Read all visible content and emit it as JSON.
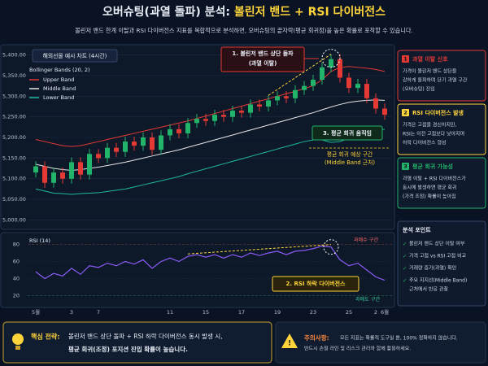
{
  "header": {
    "title_prefix": "오버슈팅(과열 돌파) 분석: ",
    "title_highlight": "볼린저 밴드 + RSI 다이버전스",
    "subtitle": "볼린저 밴드 한계 이탈과 RSI 다이버전스 지표를 복합적으로 분석하면, 오버슈팅의 끝자락(평균 회귀점)을 높은 확률로 포착할 수 있습니다."
  },
  "chart_data": [
    {
      "type": "candlestick",
      "title": "해외선물 예시 차트 (4시간)",
      "legend_title": "Bollinger Bands (20, 2)",
      "open": [
        5115,
        5130,
        5090,
        5115,
        5100,
        5140,
        5110,
        5160,
        5150,
        5175,
        5165,
        5190,
        5180,
        5200,
        5170,
        5205,
        5220,
        5210,
        5235,
        5245,
        5240,
        5255,
        5250,
        5265,
        5260,
        5280,
        5275,
        5290,
        5300,
        5295,
        5315,
        5325,
        5340,
        5370,
        5390,
        5345,
        5320,
        5330,
        5295,
        5270
      ],
      "high": [
        5142,
        5142,
        5127,
        5127,
        5152,
        5152,
        5172,
        5172,
        5187,
        5187,
        5202,
        5202,
        5212,
        5212,
        5217,
        5232,
        5232,
        5247,
        5257,
        5257,
        5267,
        5267,
        5277,
        5277,
        5292,
        5292,
        5302,
        5312,
        5312,
        5327,
        5337,
        5352,
        5382,
        5402,
        5402,
        5357,
        5342,
        5342,
        5307,
        5282
      ],
      "low": [
        5103,
        5078,
        5078,
        5088,
        5088,
        5098,
        5098,
        5138,
        5138,
        5153,
        5153,
        5168,
        5168,
        5158,
        5158,
        5193,
        5198,
        5198,
        5223,
        5228,
        5228,
        5238,
        5238,
        5248,
        5248,
        5263,
        5263,
        5278,
        5283,
        5283,
        5303,
        5313,
        5328,
        5358,
        5333,
        5308,
        5308,
        5283,
        5258,
        5243
      ],
      "close": [
        5130,
        5090,
        5115,
        5100,
        5140,
        5110,
        5160,
        5150,
        5175,
        5165,
        5190,
        5180,
        5200,
        5170,
        5205,
        5220,
        5210,
        5235,
        5245,
        5240,
        5255,
        5250,
        5265,
        5260,
        5280,
        5275,
        5290,
        5300,
        5295,
        5315,
        5325,
        5340,
        5370,
        5390,
        5345,
        5320,
        5330,
        5295,
        5270,
        5255
      ],
      "up_color": "#22b46a",
      "down_color": "#e53935",
      "series": [
        {
          "name": "Upper Band",
          "color": "#e53935",
          "values": [
            5195,
            5190,
            5185,
            5180,
            5178,
            5180,
            5185,
            5190,
            5195,
            5200,
            5205,
            5210,
            5215,
            5220,
            5225,
            5230,
            5235,
            5240,
            5246,
            5252,
            5258,
            5264,
            5270,
            5276,
            5282,
            5288,
            5294,
            5300,
            5306,
            5312,
            5318,
            5326,
            5340,
            5360,
            5370,
            5372,
            5370,
            5368,
            5365,
            5360
          ]
        },
        {
          "name": "Middle Band",
          "color": "#e6e6e6",
          "values": [
            5135,
            5130,
            5125,
            5122,
            5120,
            5122,
            5125,
            5128,
            5132,
            5136,
            5140,
            5145,
            5150,
            5155,
            5160,
            5165,
            5170,
            5176,
            5182,
            5188,
            5194,
            5200,
            5206,
            5212,
            5218,
            5224,
            5230,
            5236,
            5242,
            5248,
            5254,
            5260,
            5267,
            5274,
            5280,
            5285,
            5288,
            5290,
            5291,
            5290
          ]
        },
        {
          "name": "Lower Band",
          "color": "#1fb8a0",
          "values": [
            5075,
            5070,
            5065,
            5064,
            5062,
            5064,
            5065,
            5066,
            5069,
            5072,
            5075,
            5080,
            5085,
            5090,
            5095,
            5100,
            5105,
            5112,
            5118,
            5124,
            5130,
            5136,
            5142,
            5148,
            5154,
            5160,
            5166,
            5172,
            5178,
            5184,
            5190,
            5194,
            5194,
            5188,
            5190,
            5198,
            5206,
            5212,
            5217,
            5220
          ]
        }
      ],
      "ylim": [
        4985,
        5415
      ],
      "yticks": [
        {
          "value": 5400,
          "label": "5,400.00"
        },
        {
          "value": 5350,
          "label": "5,350.00"
        },
        {
          "value": 5300,
          "label": "5,300.00"
        },
        {
          "value": 5250,
          "label": "5,250.00"
        },
        {
          "value": 5200,
          "label": "5,200.00"
        },
        {
          "value": 5150,
          "label": "5,150.00"
        },
        {
          "value": 5100,
          "label": "5,100.00"
        },
        {
          "value": 5050,
          "label": "5,050.00"
        },
        {
          "value": 5000,
          "label": "5,000.00"
        }
      ],
      "grid": true,
      "annotations": [
        {
          "lines": [
            "1. 볼린저 밴드 상단 돌파",
            "(과열 이탈)"
          ]
        },
        {
          "lines": [
            "3. 평균 회귀 움직임"
          ]
        },
        {
          "lines": [
            "평균 회귀 예상 구간",
            "(Middle Band 근처)"
          ]
        }
      ]
    },
    {
      "type": "line",
      "title": "RSI (14)",
      "color": "#8b5cf6",
      "categories": [
        "5월",
        null,
        null,
        null,
        "3",
        null,
        null,
        "7",
        null,
        null,
        null,
        null,
        null,
        null,
        null,
        "11",
        null,
        null,
        null,
        "15",
        null,
        null,
        null,
        "17",
        null,
        null,
        null,
        "19",
        null,
        null,
        null,
        "23",
        null,
        null,
        null,
        "25",
        null,
        null,
        "2",
        "6월"
      ],
      "values": [
        48,
        40,
        46,
        43,
        52,
        45,
        55,
        53,
        58,
        55,
        60,
        57,
        62,
        52,
        60,
        64,
        60,
        66,
        68,
        65,
        68,
        64,
        68,
        65,
        70,
        67,
        70,
        72,
        68,
        72,
        73,
        75,
        78,
        77,
        62,
        55,
        58,
        50,
        42,
        38
      ],
      "ylim": [
        10,
        90
      ],
      "yticks": [
        80,
        60,
        40,
        20
      ],
      "grid": true,
      "annotations": [
        {
          "lines": [
            "2. RSI 하락 다이버전스"
          ]
        },
        {
          "lines": [
            "과매수 구간"
          ]
        },
        {
          "lines": [
            "과매도 구간"
          ]
        }
      ]
    }
  ],
  "sidebar": {
    "cards": [
      {
        "number": "1",
        "title": "과열 이탈 신호",
        "lines": [
          "가격이 볼린저 밴드 상단을",
          "강하게 돌파하며 단기 과열 구간",
          "(오버슈팅) 진입"
        ]
      },
      {
        "number": "2",
        "title": "RSI 다이버전스 발생",
        "lines": [
          "가격은 고점을 경신하지만,",
          "RSI는 이전 고점보다 낮아지며",
          "하락 다이버전스 형성"
        ]
      },
      {
        "number": "3",
        "title": "평균 회귀 가능성",
        "lines": [
          "과열 이탈 + RSI 다이버전스가",
          "동시에 발생하면 평균 회귀",
          "(가격 조정) 확률이 높아짐"
        ]
      }
    ],
    "points_title": "분석 포인트",
    "points": [
      [
        "볼린저 밴드 상단 이탈 여부"
      ],
      [
        "가격 고점 vs RSI 고점 비교"
      ],
      [
        "거래량 증가(과열) 확인"
      ],
      [
        "주요 지지선(Middle Band)",
        "근처에서 반응 관찰"
      ]
    ]
  },
  "footer": {
    "strategy_label": "핵심 전략:",
    "strategy_lines": [
      "볼린저 밴드 상단 돌파 + RSI 하락 다이버전스 동시 발생 시,",
      "평균 회귀(조정) 포지션 진입 확률이 높습니다."
    ],
    "caution_label": "주의사항:",
    "caution_lines": [
      "모든 지표는 확률적 도구일 뿐, 100% 정확하지 않습니다.",
      "반드시 손절 라인 및 리스크 관리와 함께 활용하세요."
    ]
  }
}
